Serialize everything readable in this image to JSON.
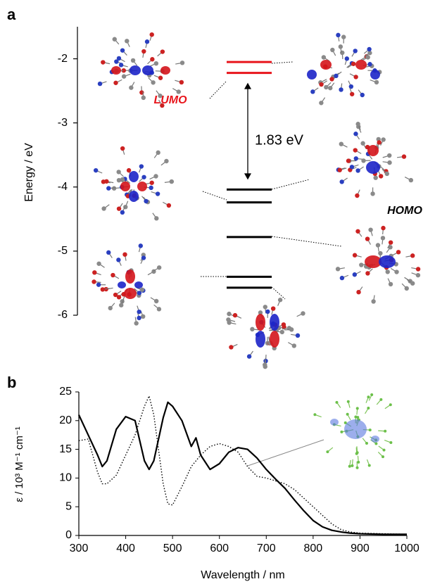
{
  "chart_data": [
    {
      "type": "energy-level",
      "panel_label": "a",
      "y_label": "Energy / eV",
      "ylim": [
        -6,
        -1.5
      ],
      "yticks": [
        -2,
        -3,
        -4,
        -5,
        -6
      ],
      "series": [
        {
          "color": "#e8141b",
          "values": [
            -2.05,
            -2.22
          ]
        },
        {
          "color": "#000000",
          "values": [
            -4.04,
            -4.24,
            -4.78,
            -5.4,
            -5.57
          ]
        }
      ],
      "annotations": {
        "lumo": "LUMO",
        "homo": "HOMO",
        "gap": "1.83 eV"
      }
    },
    {
      "type": "line",
      "panel_label": "b",
      "x_label": "Wavelength / nm",
      "y_label": "ε / 10³ M⁻¹ cm⁻¹",
      "xlim": [
        300,
        1000
      ],
      "ylim": [
        0,
        25
      ],
      "xticks": [
        300,
        400,
        500,
        600,
        700,
        800,
        900,
        1000
      ],
      "yticks": [
        0,
        5,
        10,
        15,
        20,
        25
      ],
      "x": [
        300,
        320,
        340,
        350,
        360,
        380,
        400,
        420,
        440,
        450,
        460,
        480,
        490,
        500,
        520,
        540,
        550,
        560,
        580,
        600,
        620,
        640,
        660,
        680,
        700,
        720,
        740,
        760,
        780,
        800,
        820,
        840,
        860,
        880,
        900,
        950,
        1000
      ],
      "series": [
        {
          "color": "#000000",
          "dash": "solid",
          "values": [
            21,
            17.5,
            14,
            12,
            13,
            18.5,
            20.7,
            20,
            13,
            11.5,
            13,
            20.5,
            23.2,
            22.5,
            20,
            15.5,
            17,
            14,
            11.5,
            12.5,
            14.5,
            15.3,
            15,
            13.5,
            11.5,
            9.8,
            8.2,
            6.2,
            4.3,
            2.6,
            1.5,
            0.9,
            0.6,
            0.4,
            0.3,
            0.2,
            0.2
          ]
        },
        {
          "color": "#000000",
          "dash": "dotted",
          "values": [
            16.5,
            16.8,
            11,
            9,
            9,
            10.5,
            14,
            17.5,
            22.5,
            24.3,
            21,
            9,
            5.5,
            5.3,
            8.5,
            12,
            13,
            14,
            15.5,
            16,
            15.5,
            14.5,
            12,
            10.3,
            10,
            9.5,
            9,
            8,
            6.5,
            5,
            3.5,
            2,
            1,
            0.6,
            0.4,
            0.3,
            0.2
          ]
        }
      ]
    }
  ]
}
